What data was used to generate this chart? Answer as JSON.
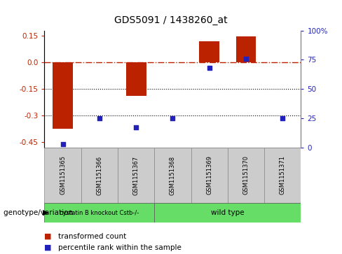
{
  "title": "GDS5091 / 1438260_at",
  "samples": [
    "GSM1151365",
    "GSM1151366",
    "GSM1151367",
    "GSM1151368",
    "GSM1151369",
    "GSM1151370",
    "GSM1151371"
  ],
  "bar_values": [
    -0.375,
    0.0,
    -0.19,
    0.0,
    0.12,
    0.148,
    0.0
  ],
  "percentile_values": [
    3,
    25,
    17,
    25,
    68,
    76,
    25
  ],
  "ylim_left": [
    -0.48,
    0.18
  ],
  "ylim_right": [
    0,
    100
  ],
  "yticks_left": [
    0.15,
    0.0,
    -0.15,
    -0.3,
    -0.45
  ],
  "yticks_right": [
    100,
    75,
    50,
    25,
    0
  ],
  "hline_y": 0.0,
  "dotted_lines": [
    -0.15,
    -0.3
  ],
  "bar_color": "#bb2200",
  "dot_color": "#2222bb",
  "group1_n": 3,
  "group2_n": 4,
  "group1_label": "cystatin B knockout Cstb-/-",
  "group2_label": "wild type",
  "group_color": "#66dd66",
  "xlabel_left": "genotype/variation",
  "legend_bar": "transformed count",
  "legend_dot": "percentile rank within the sample",
  "bg_color": "#ffffff",
  "sample_box_color": "#cccccc",
  "bar_width": 0.55
}
